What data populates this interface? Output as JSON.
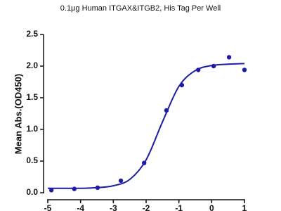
{
  "chart_data": {
    "type": "scatter",
    "title": "0.1μg Human ITGAX&ITGB2, His Tag Per Well",
    "ylabel": "Mean Abs.(OD450)",
    "color": "#1c1ca6",
    "x": [
      -4.89,
      -4.19,
      -3.48,
      -2.77,
      -2.06,
      -1.38,
      -0.91,
      -0.41,
      0.06,
      0.53,
      1.0
    ],
    "values": [
      0.04,
      0.06,
      0.08,
      0.19,
      0.47,
      1.3,
      1.7,
      1.94,
      2.0,
      2.14,
      1.94
    ],
    "fit": {
      "type": "line",
      "x": [
        -5,
        -4.5,
        -4,
        -3.5,
        -3,
        -2.5,
        -2,
        -1.5,
        -1,
        -0.5,
        0,
        0.5,
        1
      ],
      "values": [
        0.07,
        0.07,
        0.07,
        0.08,
        0.11,
        0.21,
        0.52,
        1.12,
        1.68,
        1.93,
        2.01,
        2.03,
        2.04
      ]
    },
    "xlim": [
      -5,
      1
    ],
    "xticks": [
      -5,
      -4,
      -3,
      -2,
      -1,
      0,
      1
    ],
    "ylim": [
      0,
      2.5
    ],
    "yticks": [
      {
        "value": 0,
        "label": "0.0"
      },
      {
        "value": 0.5,
        "label": "0.5"
      },
      {
        "value": 1,
        "label": "1.0"
      },
      {
        "value": 1.5,
        "label": "1.5"
      },
      {
        "value": 2,
        "label": "2.0"
      },
      {
        "value": 2.5,
        "label": "2.5"
      }
    ]
  }
}
